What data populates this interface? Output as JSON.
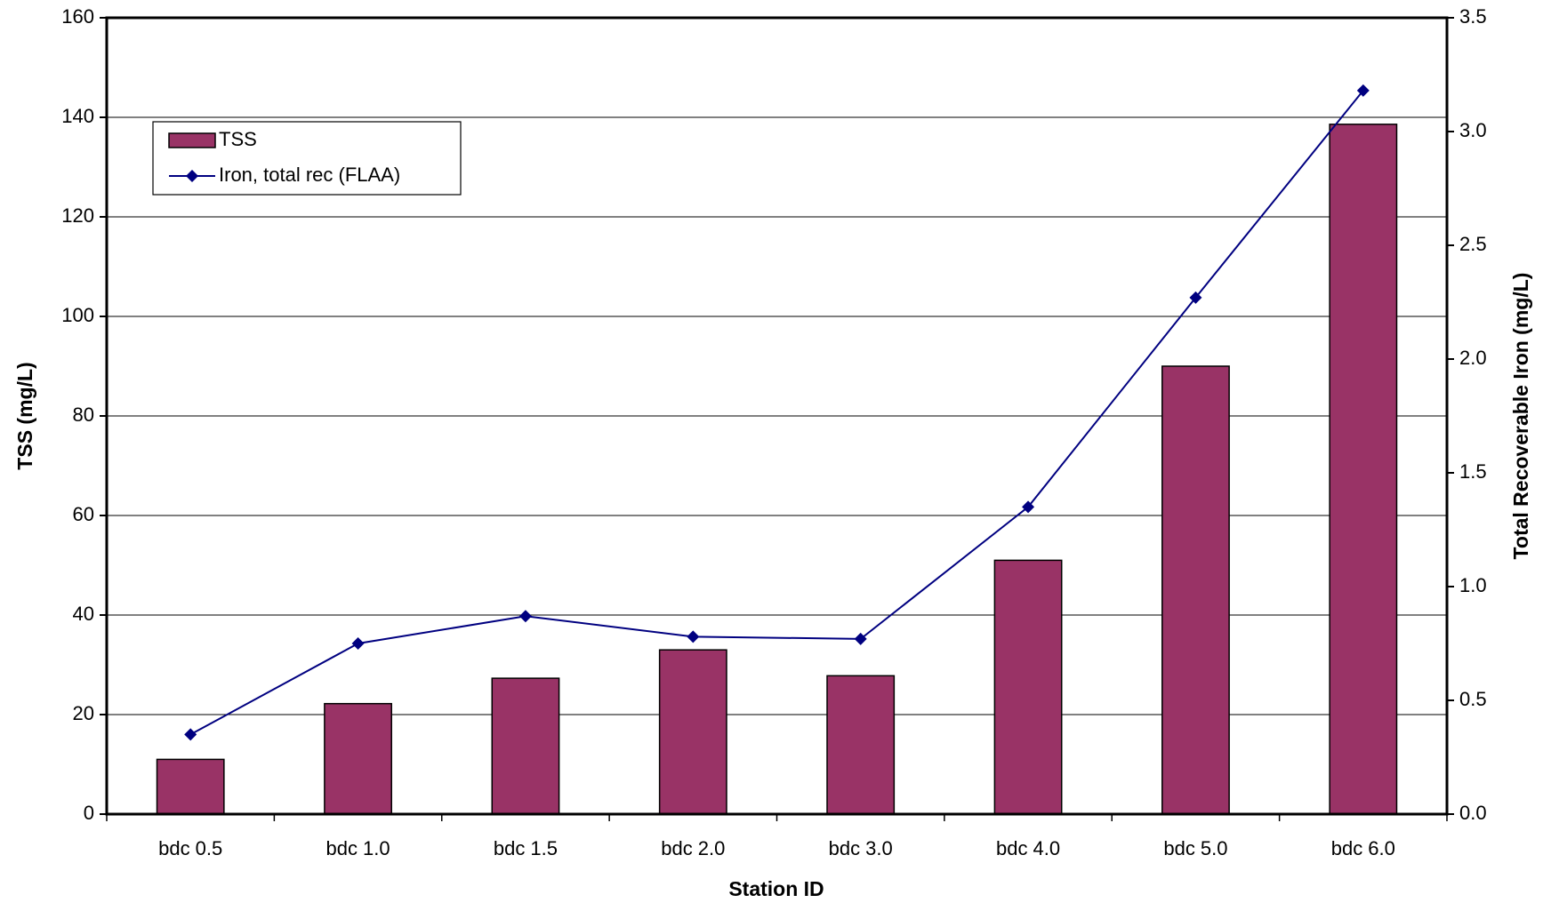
{
  "chart_data": {
    "type": "bar",
    "x_label": "Station ID",
    "y_label": "TSS (mg/L)",
    "y2_label": "Total Recoverable Iron (mg/L)",
    "categories": [
      "bdc 0.5",
      "bdc 1.0",
      "bdc 1.5",
      "bdc 2.0",
      "bdc 3.0",
      "bdc 4.0",
      "bdc 5.0",
      "bdc 6.0"
    ],
    "series": [
      {
        "name": "TSS",
        "type": "bar",
        "color": "#993366",
        "values": [
          11,
          22.2,
          27.3,
          33,
          27.8,
          51,
          90,
          138.6
        ]
      },
      {
        "name": "Iron, total rec (FLAA)",
        "type": "line",
        "axis": "y2",
        "color": "#000080",
        "values": [
          0.35,
          0.75,
          0.87,
          0.78,
          0.77,
          1.35,
          2.27,
          3.18
        ]
      }
    ],
    "ylim": [
      0,
      160
    ],
    "yticks": [
      0,
      20,
      40,
      60,
      80,
      100,
      120,
      140,
      160
    ],
    "y2lim": [
      0,
      3.5
    ],
    "y2ticks": [
      {
        "value": 0,
        "label": "0.0"
      },
      0.5,
      {
        "value": 1,
        "label": "1.0"
      },
      1.5,
      {
        "value": 2,
        "label": "2.0"
      },
      2.5,
      {
        "value": 3,
        "label": "3.0"
      },
      3.5
    ],
    "grid": true,
    "legend": "upper left"
  }
}
